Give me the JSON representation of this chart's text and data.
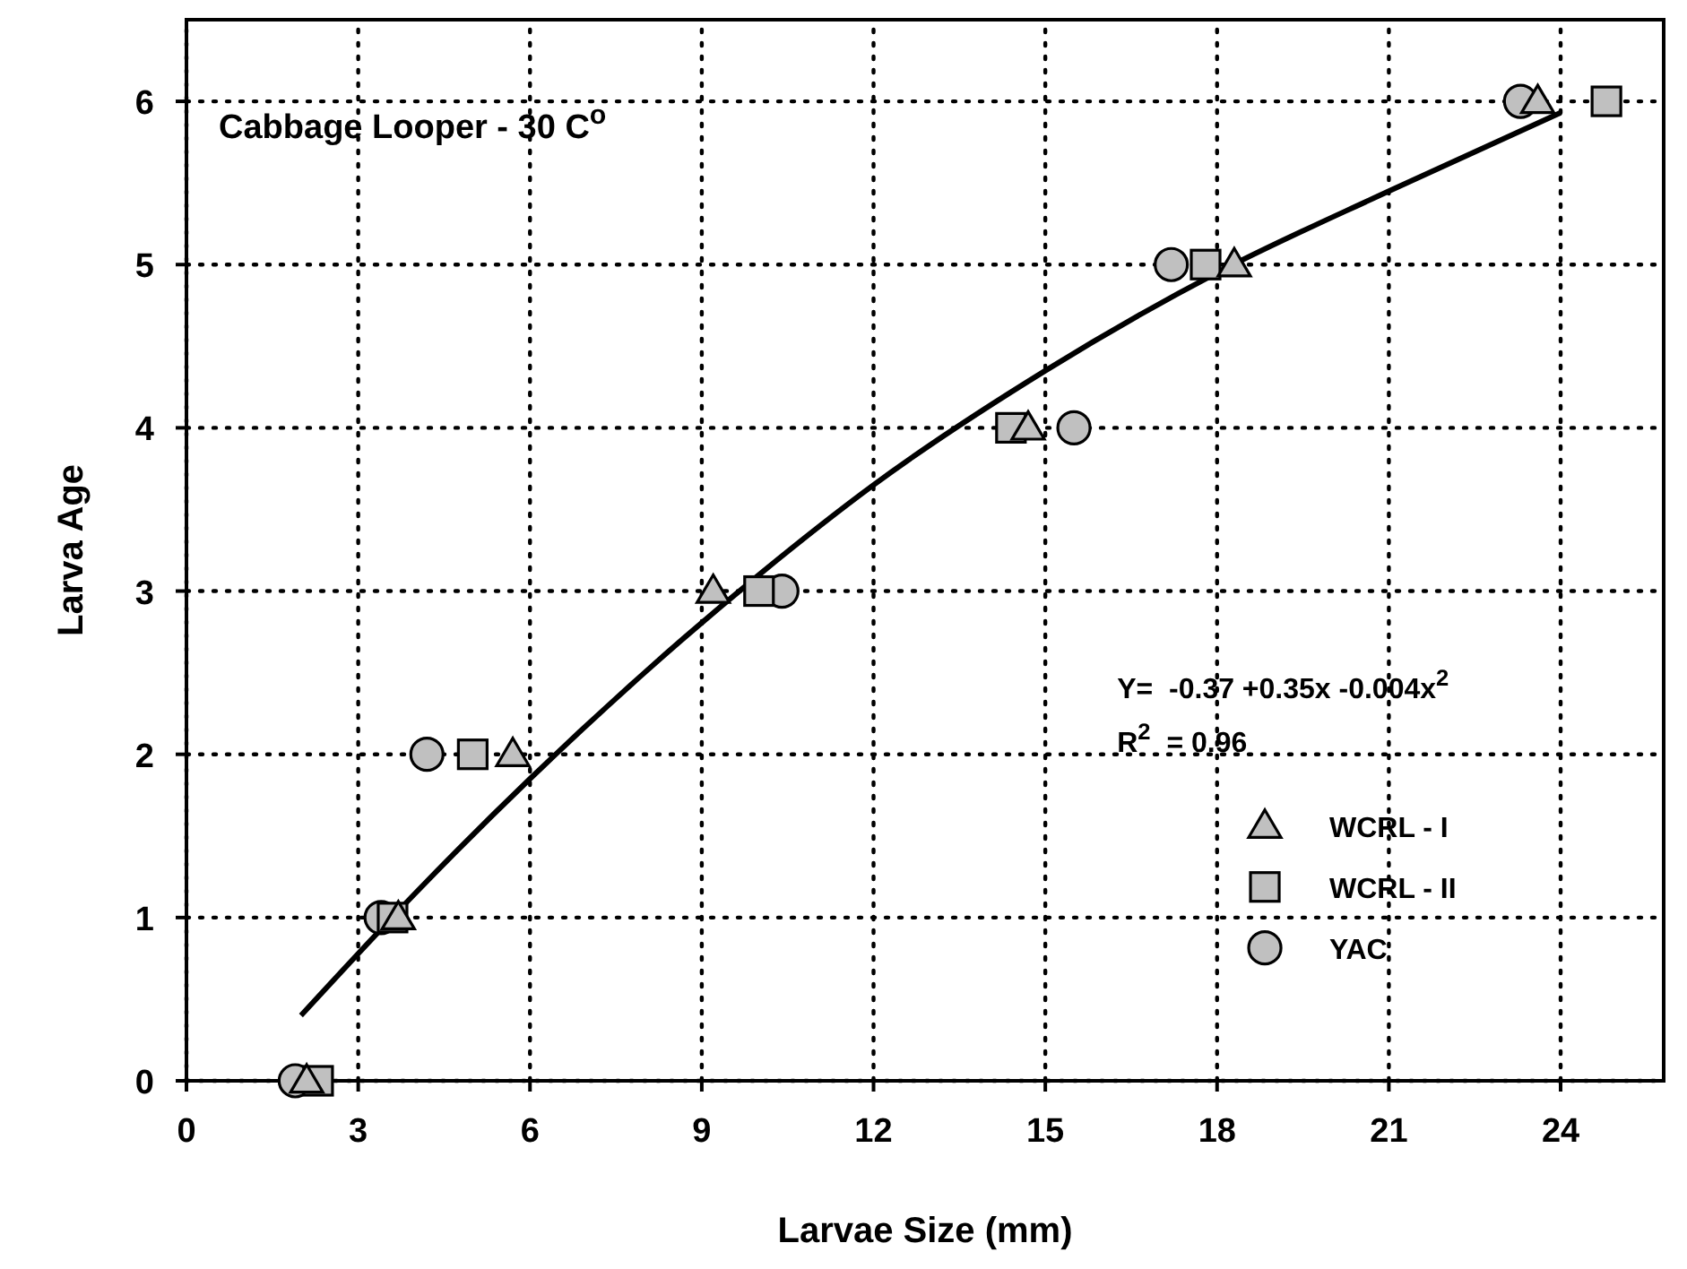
{
  "chart_data": {
    "type": "scatter",
    "title": "Cabbage Looper - 30 C$^{o}$",
    "xlabel": "Larvae Size (mm)",
    "ylabel": "Larva Age",
    "xlim": [
      0,
      25.8
    ],
    "xticks": [
      0,
      3,
      6,
      9,
      12,
      15,
      18,
      21,
      24
    ],
    "ylim": [
      0,
      6.5
    ],
    "yticks": [
      0,
      1,
      2,
      3,
      4,
      5,
      6
    ],
    "grid": true,
    "line_style": "dotted",
    "legend": "right",
    "annotations": [
      "Y=  -0.37 +0.35x -0.004x$^{2}$",
      "R$^{2}$  = 0.96"
    ],
    "series": [
      {
        "name": "WCRL - I",
        "color": "#c0c0c0",
        "marker": "triangle",
        "x": [
          2.1,
          3.7,
          5.7,
          9.2,
          14.7,
          18.3,
          23.6
        ],
        "values": [
          0,
          1,
          2,
          3,
          4,
          5,
          6
        ]
      },
      {
        "name": "WCRL - II",
        "color": "#c0c0c0",
        "marker": "square",
        "x": [
          2.3,
          3.6,
          5.0,
          10.0,
          14.4,
          17.8,
          24.8
        ],
        "values": [
          0,
          1,
          2,
          3,
          4,
          5,
          6
        ]
      },
      {
        "name": "YAC",
        "color": "#c0c0c0",
        "marker": "circle",
        "x": [
          1.9,
          3.4,
          4.2,
          10.4,
          15.5,
          17.2,
          23.3
        ],
        "values": [
          0,
          1,
          2,
          3,
          4,
          5,
          6
        ]
      },
      {
        "type": "line",
        "color": "#000000",
        "marker": "none",
        "line_style": "solid",
        "x": [
          2,
          4,
          6,
          8,
          10,
          12,
          15,
          18,
          21,
          24
        ],
        "values": [
          0.4,
          1.15,
          1.85,
          2.5,
          3.1,
          3.65,
          4.35,
          4.95,
          5.45,
          5.93
        ]
      }
    ]
  }
}
